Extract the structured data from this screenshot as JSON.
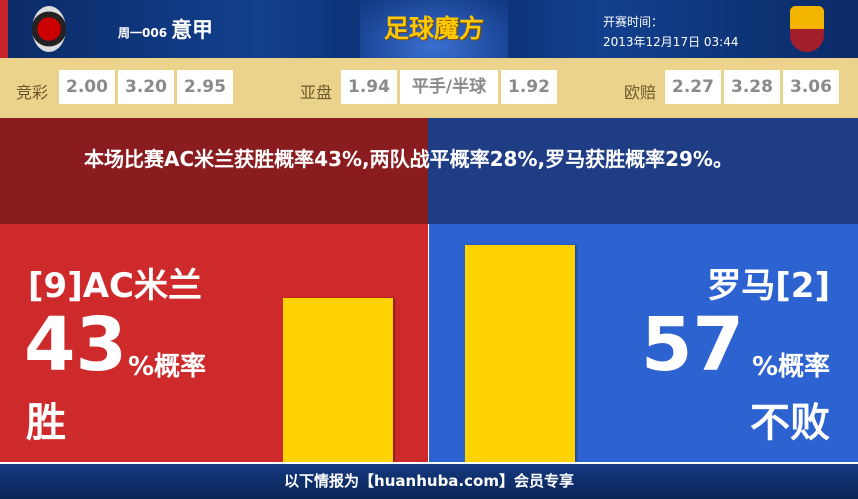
{
  "header": {
    "league_code": "周一006",
    "league_name": "意甲",
    "brand": "足球魔方",
    "kickoff_label": "开赛时间：",
    "kickoff_time": "2013年12月17日 03:44",
    "home_logo": "ac-milan-crest",
    "away_logo": "as-roma-crest"
  },
  "odds": {
    "jingcai": {
      "label": "竞彩",
      "values": [
        "2.00",
        "3.20",
        "2.95"
      ]
    },
    "asian": {
      "label": "亚盘",
      "home": "1.94",
      "handicap": "平手/半球",
      "away": "1.92"
    },
    "euro": {
      "label": "欧赔",
      "values": [
        "2.27",
        "3.28",
        "3.06"
      ]
    }
  },
  "message": "本场比赛AC米兰获胜概率43%,两队战平概率28%,罗马获胜概率29%。",
  "home": {
    "team": "[9]AC米兰",
    "percent": "43",
    "unit": "%概率",
    "result": "胜",
    "bar_value": 43,
    "color": "#cf2a2b"
  },
  "away": {
    "team": "罗马[2]",
    "percent": "57",
    "unit": "%概率",
    "result": "不败",
    "bar_value": 57,
    "color": "#2c63d0"
  },
  "bar_color": "#ffd200",
  "footer": "以下情报为【huanhuba.com】会员专享"
}
